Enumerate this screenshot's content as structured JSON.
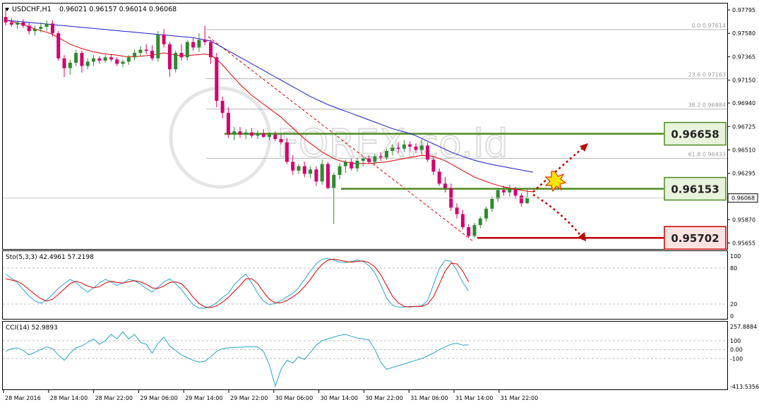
{
  "header": {
    "symbol": "USDCHF,H1",
    "ohlc": "0.96021 0.96157 0.96014 0.96068"
  },
  "price_axis": {
    "ticks": [
      "0.97795",
      "0.97580",
      "0.97365",
      "0.97150",
      "0.96940",
      "0.96725",
      "0.96510",
      "0.96295",
      "0.95870",
      "0.95655"
    ],
    "current_price": "0.96068"
  },
  "fibonacci": [
    {
      "label": "0.0 0.97614",
      "value": 0.97614
    },
    {
      "label": "23.6 0.97163",
      "value": 0.97163
    },
    {
      "label": "38.2 0.96884",
      "value": 0.96884
    },
    {
      "label": "61.8 0.96433",
      "value": 0.96433
    }
  ],
  "levels": [
    {
      "label": "0.96658",
      "value": 0.96658,
      "kind": "resistance"
    },
    {
      "label": "0.96153",
      "value": 0.96153,
      "kind": "support"
    },
    {
      "label": "0.95702",
      "value": 0.95702,
      "kind": "target"
    }
  ],
  "watermark": "FOREX.co.id",
  "indicators": {
    "stochastic": {
      "label": "Sto(5,3,3) 42.4961 57.2198",
      "ticks": [
        "100",
        "80",
        "20",
        "0"
      ],
      "main": [
        70,
        63,
        55,
        44,
        33,
        25,
        21,
        27,
        36,
        46,
        54,
        61,
        56,
        47,
        40,
        47,
        55,
        61,
        57,
        51,
        55,
        61,
        59,
        53,
        46,
        40,
        48,
        57,
        62,
        54,
        44,
        31,
        19,
        13,
        13,
        16,
        22,
        31,
        38,
        52,
        62,
        70,
        55,
        38,
        25,
        19,
        21,
        26,
        32,
        38,
        47,
        61,
        75,
        87,
        95,
        96,
        93,
        90,
        89,
        91,
        93,
        91,
        84,
        72,
        52,
        30,
        18,
        15,
        15,
        16,
        16,
        17,
        26,
        52,
        79,
        93,
        91,
        76,
        56,
        42
      ],
      "signal": [
        62,
        60,
        58,
        52,
        44,
        36,
        29,
        25,
        28,
        36,
        45,
        54,
        58,
        55,
        50,
        47,
        49,
        55,
        58,
        56,
        55,
        57,
        59,
        57,
        53,
        47,
        46,
        50,
        56,
        57,
        54,
        44,
        31,
        21,
        15,
        14,
        17,
        23,
        31,
        41,
        51,
        62,
        62,
        54,
        40,
        28,
        22,
        22,
        26,
        32,
        39,
        49,
        61,
        75,
        86,
        93,
        95,
        93,
        91,
        90,
        91,
        92,
        89,
        82,
        69,
        51,
        33,
        22,
        16,
        15,
        16,
        16,
        20,
        32,
        53,
        75,
        88,
        87,
        75,
        57
      ]
    },
    "cci": {
      "label": "CCI(14) 52.9893",
      "ticks": [
        "257.8884",
        "100",
        "0.00",
        "-100",
        "-413.5356"
      ],
      "values": [
        -20,
        10,
        20,
        -10,
        -60,
        -30,
        0,
        30,
        10,
        -60,
        -120,
        -40,
        20,
        40,
        80,
        120,
        60,
        100,
        170,
        120,
        200,
        120,
        170,
        80,
        60,
        -40,
        70,
        140,
        40,
        -10,
        -60,
        -90,
        -120,
        -140,
        -130,
        -80,
        -20,
        10,
        20,
        25,
        28,
        30,
        30,
        30,
        -20,
        -170,
        -410,
        -220,
        -120,
        -150,
        -80,
        -110,
        -30,
        50,
        100,
        120,
        140,
        160,
        170,
        150,
        130,
        120,
        110,
        0,
        -140,
        -220,
        -200,
        -180,
        -160,
        -140,
        -120,
        -100,
        -70,
        -40,
        0,
        30,
        60,
        70,
        50,
        53
      ]
    }
  },
  "chart_data": {
    "type": "candlestick",
    "series": [
      {
        "name": "USDCHF,H1",
        "candles": [
          {
            "o": 0.9773,
            "h": 0.978,
            "l": 0.9765,
            "c": 0.9768
          },
          {
            "o": 0.9768,
            "h": 0.9772,
            "l": 0.9764,
            "c": 0.9766
          },
          {
            "o": 0.9766,
            "h": 0.977,
            "l": 0.9762,
            "c": 0.9768
          },
          {
            "o": 0.9768,
            "h": 0.9771,
            "l": 0.9763,
            "c": 0.9765
          },
          {
            "o": 0.9765,
            "h": 0.9768,
            "l": 0.9757,
            "c": 0.976
          },
          {
            "o": 0.976,
            "h": 0.9765,
            "l": 0.9756,
            "c": 0.9762
          },
          {
            "o": 0.9762,
            "h": 0.9768,
            "l": 0.9759,
            "c": 0.9764
          },
          {
            "o": 0.9764,
            "h": 0.977,
            "l": 0.976,
            "c": 0.9767
          },
          {
            "o": 0.9767,
            "h": 0.977,
            "l": 0.9755,
            "c": 0.9758
          },
          {
            "o": 0.9758,
            "h": 0.976,
            "l": 0.9733,
            "c": 0.9735
          },
          {
            "o": 0.9735,
            "h": 0.9738,
            "l": 0.9718,
            "c": 0.9726
          },
          {
            "o": 0.9726,
            "h": 0.9734,
            "l": 0.972,
            "c": 0.9731
          },
          {
            "o": 0.9731,
            "h": 0.9743,
            "l": 0.9728,
            "c": 0.974
          },
          {
            "o": 0.974,
            "h": 0.9742,
            "l": 0.9722,
            "c": 0.9728
          },
          {
            "o": 0.9728,
            "h": 0.9735,
            "l": 0.9725,
            "c": 0.9732
          },
          {
            "o": 0.9732,
            "h": 0.9738,
            "l": 0.9728,
            "c": 0.9735
          },
          {
            "o": 0.9735,
            "h": 0.9737,
            "l": 0.973,
            "c": 0.9733
          },
          {
            "o": 0.9733,
            "h": 0.9738,
            "l": 0.9731,
            "c": 0.9736
          },
          {
            "o": 0.9736,
            "h": 0.9739,
            "l": 0.9732,
            "c": 0.9734
          },
          {
            "o": 0.9734,
            "h": 0.9736,
            "l": 0.9728,
            "c": 0.973
          },
          {
            "o": 0.973,
            "h": 0.9734,
            "l": 0.9727,
            "c": 0.9732
          },
          {
            "o": 0.9732,
            "h": 0.9738,
            "l": 0.9729,
            "c": 0.9736
          },
          {
            "o": 0.9736,
            "h": 0.9743,
            "l": 0.9733,
            "c": 0.974
          },
          {
            "o": 0.974,
            "h": 0.9746,
            "l": 0.9737,
            "c": 0.9743
          },
          {
            "o": 0.9743,
            "h": 0.9748,
            "l": 0.9739,
            "c": 0.9742
          },
          {
            "o": 0.9742,
            "h": 0.9747,
            "l": 0.9733,
            "c": 0.9735
          },
          {
            "o": 0.9735,
            "h": 0.976,
            "l": 0.9732,
            "c": 0.9757
          },
          {
            "o": 0.9757,
            "h": 0.9762,
            "l": 0.9745,
            "c": 0.9748
          },
          {
            "o": 0.9748,
            "h": 0.975,
            "l": 0.9718,
            "c": 0.9725
          },
          {
            "o": 0.9725,
            "h": 0.9742,
            "l": 0.9722,
            "c": 0.974
          },
          {
            "o": 0.974,
            "h": 0.9748,
            "l": 0.9733,
            "c": 0.9736
          },
          {
            "o": 0.9736,
            "h": 0.9752,
            "l": 0.9733,
            "c": 0.975
          },
          {
            "o": 0.975,
            "h": 0.9754,
            "l": 0.9742,
            "c": 0.9745
          },
          {
            "o": 0.9745,
            "h": 0.9758,
            "l": 0.9741,
            "c": 0.9752
          },
          {
            "o": 0.9752,
            "h": 0.9765,
            "l": 0.9747,
            "c": 0.975
          },
          {
            "o": 0.975,
            "h": 0.9752,
            "l": 0.973,
            "c": 0.9736
          },
          {
            "o": 0.9736,
            "h": 0.974,
            "l": 0.969,
            "c": 0.9696
          },
          {
            "o": 0.9696,
            "h": 0.97,
            "l": 0.968,
            "c": 0.9685
          },
          {
            "o": 0.9685,
            "h": 0.969,
            "l": 0.9662,
            "c": 0.9665
          },
          {
            "o": 0.9665,
            "h": 0.9672,
            "l": 0.966,
            "c": 0.9668
          },
          {
            "o": 0.9668,
            "h": 0.9672,
            "l": 0.9662,
            "c": 0.9665
          },
          {
            "o": 0.9665,
            "h": 0.967,
            "l": 0.9661,
            "c": 0.9667
          },
          {
            "o": 0.9667,
            "h": 0.9671,
            "l": 0.9662,
            "c": 0.9664
          },
          {
            "o": 0.9664,
            "h": 0.9669,
            "l": 0.9661,
            "c": 0.9666
          },
          {
            "o": 0.9666,
            "h": 0.967,
            "l": 0.9662,
            "c": 0.9663
          },
          {
            "o": 0.9663,
            "h": 0.9667,
            "l": 0.966,
            "c": 0.9665
          },
          {
            "o": 0.9665,
            "h": 0.9668,
            "l": 0.9659,
            "c": 0.9661
          },
          {
            "o": 0.9661,
            "h": 0.9665,
            "l": 0.9656,
            "c": 0.9658
          },
          {
            "o": 0.9658,
            "h": 0.9662,
            "l": 0.9638,
            "c": 0.964
          },
          {
            "o": 0.964,
            "h": 0.9646,
            "l": 0.9628,
            "c": 0.9632
          },
          {
            "o": 0.9632,
            "h": 0.9638,
            "l": 0.9629,
            "c": 0.9636
          },
          {
            "o": 0.9636,
            "h": 0.964,
            "l": 0.9626,
            "c": 0.9629
          },
          {
            "o": 0.9629,
            "h": 0.9636,
            "l": 0.9625,
            "c": 0.9633
          },
          {
            "o": 0.9633,
            "h": 0.9636,
            "l": 0.9618,
            "c": 0.9622
          },
          {
            "o": 0.9622,
            "h": 0.9642,
            "l": 0.9619,
            "c": 0.9638
          },
          {
            "o": 0.9638,
            "h": 0.964,
            "l": 0.9615,
            "c": 0.9616
          },
          {
            "o": 0.9616,
            "h": 0.963,
            "l": 0.9583,
            "c": 0.9628
          },
          {
            "o": 0.9628,
            "h": 0.9639,
            "l": 0.9624,
            "c": 0.9636
          },
          {
            "o": 0.9636,
            "h": 0.9642,
            "l": 0.963,
            "c": 0.964
          },
          {
            "o": 0.964,
            "h": 0.9643,
            "l": 0.9632,
            "c": 0.9634
          },
          {
            "o": 0.9634,
            "h": 0.9644,
            "l": 0.9631,
            "c": 0.9641
          },
          {
            "o": 0.9641,
            "h": 0.9645,
            "l": 0.9636,
            "c": 0.9643
          },
          {
            "o": 0.9643,
            "h": 0.9646,
            "l": 0.9638,
            "c": 0.964
          },
          {
            "o": 0.964,
            "h": 0.9647,
            "l": 0.9637,
            "c": 0.9645
          },
          {
            "o": 0.9645,
            "h": 0.9649,
            "l": 0.9641,
            "c": 0.9644
          },
          {
            "o": 0.9644,
            "h": 0.9652,
            "l": 0.9642,
            "c": 0.965
          },
          {
            "o": 0.965,
            "h": 0.9656,
            "l": 0.9646,
            "c": 0.9653
          },
          {
            "o": 0.9653,
            "h": 0.9658,
            "l": 0.9648,
            "c": 0.9652
          },
          {
            "o": 0.9652,
            "h": 0.966,
            "l": 0.9649,
            "c": 0.9656
          },
          {
            "o": 0.9656,
            "h": 0.9659,
            "l": 0.965,
            "c": 0.9654
          },
          {
            "o": 0.9654,
            "h": 0.9657,
            "l": 0.9648,
            "c": 0.9651
          },
          {
            "o": 0.9651,
            "h": 0.966,
            "l": 0.9647,
            "c": 0.9655
          },
          {
            "o": 0.9655,
            "h": 0.9658,
            "l": 0.964,
            "c": 0.9642
          },
          {
            "o": 0.9642,
            "h": 0.9645,
            "l": 0.9628,
            "c": 0.9631
          },
          {
            "o": 0.9631,
            "h": 0.9634,
            "l": 0.9618,
            "c": 0.962
          },
          {
            "o": 0.962,
            "h": 0.9626,
            "l": 0.9612,
            "c": 0.9616
          },
          {
            "o": 0.9616,
            "h": 0.962,
            "l": 0.9595,
            "c": 0.9598
          },
          {
            "o": 0.9598,
            "h": 0.9602,
            "l": 0.9588,
            "c": 0.9592
          },
          {
            "o": 0.9592,
            "h": 0.9596,
            "l": 0.9578,
            "c": 0.958
          },
          {
            "o": 0.958,
            "h": 0.9583,
            "l": 0.95702,
            "c": 0.9572
          },
          {
            "o": 0.9572,
            "h": 0.9584,
            "l": 0.95702,
            "c": 0.9582
          },
          {
            "o": 0.9582,
            "h": 0.959,
            "l": 0.9579,
            "c": 0.9588
          },
          {
            "o": 0.9588,
            "h": 0.9599,
            "l": 0.9585,
            "c": 0.9597
          },
          {
            "o": 0.9597,
            "h": 0.9608,
            "l": 0.9594,
            "c": 0.9606
          },
          {
            "o": 0.9606,
            "h": 0.9616,
            "l": 0.9603,
            "c": 0.9614
          },
          {
            "o": 0.9614,
            "h": 0.9618,
            "l": 0.9609,
            "c": 0.9612
          },
          {
            "o": 0.9612,
            "h": 0.9619,
            "l": 0.9608,
            "c": 0.9615
          },
          {
            "o": 0.9615,
            "h": 0.9617,
            "l": 0.9606,
            "c": 0.9609
          },
          {
            "o": 0.9609,
            "h": 0.9611,
            "l": 0.9599,
            "c": 0.9602
          },
          {
            "o": 0.96021,
            "h": 0.96157,
            "l": 0.96014,
            "c": 0.96068
          }
        ]
      },
      {
        "name": "MA fast",
        "color": "#e00000",
        "values": [
          0.977,
          0.9769,
          0.97675,
          0.9766,
          0.9764,
          0.9762,
          0.97605,
          0.9759,
          0.9757,
          0.9754,
          0.9751,
          0.9748,
          0.9746,
          0.9744,
          0.97425,
          0.9741,
          0.974,
          0.9739,
          0.97385,
          0.9738,
          0.9737,
          0.97365,
          0.97365,
          0.9737,
          0.97375,
          0.9738,
          0.9739,
          0.974,
          0.9739,
          0.9738,
          0.97375,
          0.97375,
          0.9738,
          0.97385,
          0.9739,
          0.9738,
          0.9734,
          0.9729,
          0.9723,
          0.9717,
          0.9711,
          0.9706,
          0.9701,
          0.9697,
          0.9693,
          0.9689,
          0.9685,
          0.9681,
          0.9676,
          0.9671,
          0.9666,
          0.9661,
          0.9657,
          0.9653,
          0.9649,
          0.9646,
          0.9643,
          0.9641,
          0.964,
          0.9639,
          0.96385,
          0.96385,
          0.96385,
          0.9639,
          0.96395,
          0.964,
          0.9641,
          0.9642,
          0.9643,
          0.9644,
          0.9645,
          0.9646,
          0.9646,
          0.9645,
          0.9643,
          0.9641,
          0.9638,
          0.9635,
          0.9632,
          0.9629,
          0.9626,
          0.9624,
          0.9622,
          0.962,
          0.96185,
          0.9617,
          0.9616,
          0.9615,
          0.9614,
          0.9613,
          0.96125
        ]
      },
      {
        "name": "MA slow",
        "color": "#1a1ad0",
        "values": [
          0.977,
          0.97695,
          0.9769,
          0.97685,
          0.9768,
          0.97675,
          0.9767,
          0.97665,
          0.9766,
          0.97655,
          0.9765,
          0.97645,
          0.9764,
          0.97635,
          0.9763,
          0.97625,
          0.9762,
          0.97615,
          0.9761,
          0.97605,
          0.976,
          0.97595,
          0.9759,
          0.97585,
          0.9758,
          0.97575,
          0.9757,
          0.97565,
          0.9756,
          0.97555,
          0.9755,
          0.97545,
          0.9754,
          0.9753,
          0.9752,
          0.9751,
          0.9748,
          0.9745,
          0.9742,
          0.9739,
          0.9736,
          0.9733,
          0.973,
          0.9727,
          0.9724,
          0.9721,
          0.9718,
          0.9715,
          0.9712,
          0.9709,
          0.9706,
          0.9703,
          0.97,
          0.96975,
          0.9695,
          0.96925,
          0.96905,
          0.96885,
          0.96865,
          0.96845,
          0.96825,
          0.96805,
          0.96785,
          0.96765,
          0.96745,
          0.96725,
          0.96705,
          0.9669,
          0.96675,
          0.9666,
          0.9664,
          0.96615,
          0.9659,
          0.96565,
          0.9654,
          0.96515,
          0.9649,
          0.9647,
          0.9645,
          0.9643,
          0.96415,
          0.964,
          0.96388,
          0.96376,
          0.96365,
          0.96355,
          0.96345,
          0.96335,
          0.96325,
          0.96315,
          0.96305
        ]
      }
    ],
    "x_labels": [
      "28 Mar 2016",
      "28 Mar 14:00",
      "28 Mar 22:00",
      "29 Mar 06:00",
      "29 Mar 14:00",
      "29 Mar 22:00",
      "30 Mar 06:00",
      "30 Mar 14:00",
      "30 Mar 22:00",
      "31 Mar 06:00",
      "31 Mar 14:00",
      "31 Mar 22:00"
    ],
    "ylim": [
      0.956,
      0.9786
    ],
    "grid": false,
    "colors": {
      "bull": "#2e8b2e",
      "bear": "#d4006e",
      "stoch_main": "#2aa4c8",
      "stoch_signal": "#e00000",
      "cci": "#2aa4c8",
      "resistance": "#4d8a1e",
      "target": "#c00000"
    }
  }
}
